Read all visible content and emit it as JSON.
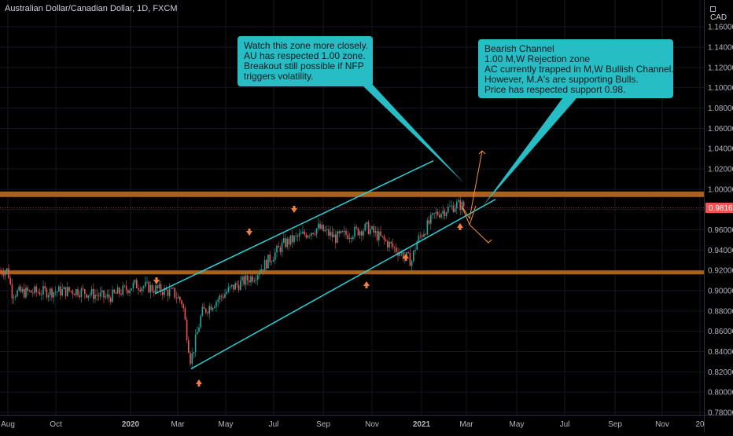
{
  "header": {
    "symbol_title": "Australian Dollar/Canadian Dollar, 1D, FXCM",
    "currency": "CAD"
  },
  "colors": {
    "background": "#000000",
    "up_candle": "#26a69a",
    "down_candle": "#ef5350",
    "zone": "#a8621c",
    "channel": "#29d3d9",
    "arrow": "#f08040",
    "projection": "#f0913a",
    "callout_bg": "#26bdc4",
    "price_tag": "#ef5350"
  },
  "chart_data": {
    "type": "candlestick",
    "title": "Australian Dollar/Canadian Dollar, 1D, FXCM",
    "x_tick_labels": [
      "Aug",
      "Oct",
      "2020",
      "Mar",
      "May",
      "Jul",
      "Sep",
      "Nov",
      "2021",
      "Mar",
      "May",
      "Jul",
      "Sep",
      "Nov",
      "20"
    ],
    "x_tick_bold": [
      "2020",
      "2021"
    ],
    "y_tick_labels": [
      "1.16000",
      "1.14000",
      "1.12000",
      "1.10000",
      "1.08000",
      "1.06000",
      "1.04000",
      "1.02000",
      "1.00000",
      "0.98000",
      "0.96000",
      "0.94000",
      "0.92000",
      "0.90000",
      "0.88000",
      "0.86000",
      "0.84000",
      "0.82000",
      "0.80000",
      "0.78000"
    ],
    "ylim": [
      0.78,
      1.17
    ],
    "y_scale": "linear",
    "last_price": "0.98165",
    "price_path": [
      [
        "Aug",
        0.92
      ],
      [
        "Aug",
        0.898
      ],
      [
        "Oct",
        0.9
      ],
      [
        "Oct",
        0.893
      ],
      [
        "2020",
        0.906
      ],
      [
        "2020",
        0.898
      ],
      [
        "Mar",
        0.888
      ],
      [
        "Mar",
        0.83
      ],
      [
        "Mar",
        0.878
      ],
      [
        "May",
        0.902
      ],
      [
        "May",
        0.915
      ],
      [
        "Jul",
        0.946
      ],
      [
        "Jul",
        0.962
      ],
      [
        "Sep",
        0.952
      ],
      [
        "Sep",
        0.962
      ],
      [
        "Nov",
        0.929
      ],
      [
        "Nov",
        0.948
      ],
      [
        "2021",
        0.975
      ],
      [
        "2021",
        0.985
      ],
      [
        "Mar",
        0.982
      ],
      [
        "Mar",
        0.995
      ],
      [
        "Mar",
        0.98165
      ]
    ],
    "horizontal_zones": [
      {
        "level": 0.995,
        "label": "1.00 zone"
      },
      {
        "level": 0.918,
        "label": "support"
      }
    ],
    "channel_lines": [
      {
        "role": "upper",
        "from": [
          "2020",
          0.897
        ],
        "to": [
          "Mar",
          1.028
        ]
      },
      {
        "role": "lower",
        "from": [
          "Mar",
          0.823
        ],
        "to": [
          "Mar",
          0.99
        ]
      }
    ],
    "arrow_markers": [
      {
        "direction": "down",
        "near": [
          "2020",
          0.905
        ]
      },
      {
        "direction": "down",
        "near": [
          "May",
          0.963
        ]
      },
      {
        "direction": "down",
        "near": [
          "Jul",
          0.987
        ]
      },
      {
        "direction": "up",
        "near": [
          "Mar",
          0.81
        ]
      },
      {
        "direction": "up",
        "near": [
          "Nov",
          0.915
        ]
      },
      {
        "direction": "up",
        "near": [
          "2021",
          0.935
        ]
      },
      {
        "direction": "up",
        "near": [
          "Mar",
          0.97
        ]
      }
    ]
  },
  "callouts": [
    {
      "lines": [
        "Watch this zone more closely.",
        "AU has respected 1.00 zone.",
        "Breakout still possible if NFP",
        "triggers volatility."
      ]
    },
    {
      "lines": [
        "Bearish Channel",
        "1.00 M,W Rejection zone",
        "AC currently trapped in M,W Bullish Channel.",
        "However, M.A's are supporting Bulls.",
        "Price has respected support 0.98."
      ]
    }
  ]
}
